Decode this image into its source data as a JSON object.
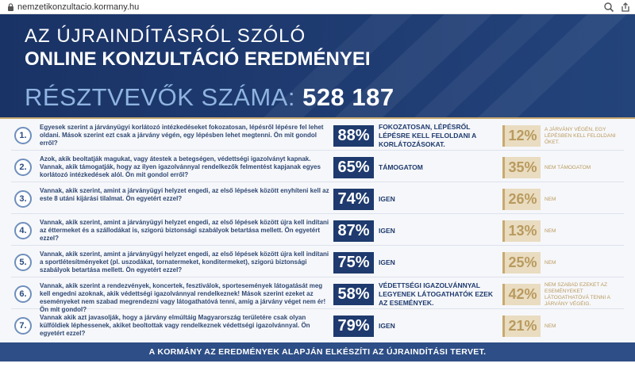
{
  "browser": {
    "url": "nemzetikonzultacio.kormany.hu",
    "icons": [
      "lock-icon",
      "zoom-icon",
      "share-icon"
    ]
  },
  "hero": {
    "line1": "AZ ÚJRAINDÍTÁSRÓL SZÓLÓ",
    "line2": "ONLINE KONZULTÁCIÓ EREDMÉNYEI",
    "count_label": "RÉSZTVEVŐK SZÁMA:",
    "count_value": "528 187"
  },
  "colors": {
    "navy": "#1e3a6e",
    "gold": "#c8a971",
    "beige": "#e9dcc0",
    "footer": "#2d4e86"
  },
  "questions": [
    {
      "num": "1.",
      "text": "Egyesek szerint a járványügyi korlátozó intézkedéseket fokozatosan, lépésről lépésre fel lehet oldani. Mások szerint ezt csak a járvány végén, egy lépésben lehet megtenni. Ön mit gondol erről?",
      "pct": "88%",
      "answer": "FOKOZATOSAN, LÉPÉSRŐL LÉPÉSRE KELL FELOLDANI A KORLÁTOZÁSOKAT.",
      "alt_pct": "12%",
      "alt_answer": "A járvány végén, egy lépésben kell feloldani őket."
    },
    {
      "num": "2.",
      "text": "Azok, akik beoltatják magukat, vagy átestek a betegségen, védettségi igazolványt kapnak. Vannak, akik támogatják, hogy az ilyen igazolvánnyal rendelkezők felmentést kapjanak egyes korlátozó intézkedések alól. Ön mit gondol erről?",
      "pct": "65%",
      "answer": "TÁMOGATOM",
      "alt_pct": "35%",
      "alt_answer": "Nem támogatom"
    },
    {
      "num": "3.",
      "text": "Vannak, akik szerint, amint a járványügyi helyzet engedi, az első lépések között enyhíteni kell az este 8 utáni kijárási tilalmat. Ön egyetért ezzel?",
      "pct": "74%",
      "answer": "IGEN",
      "alt_pct": "26%",
      "alt_answer": "Nem"
    },
    {
      "num": "4.",
      "text": "Vannak, akik szerint, amint a járványügyi helyzet engedi, az első lépések között újra kell indítani az éttermeket és a szállodákat is, szigorú biztonsági szabályok betartása mellett. Ön egyetért ezzel?",
      "pct": "87%",
      "answer": "IGEN",
      "alt_pct": "13%",
      "alt_answer": "Nem"
    },
    {
      "num": "5.",
      "text": "Vannak, akik szerint, amint a járványügyi helyzet engedi, az első lépések között újra kell indítani a sportlétesítményeket (pl. uszodákat, tornatermeket, konditermeket), szigorú biztonsági szabályok betartása mellett. Ön egyetért ezzel?",
      "pct": "75%",
      "answer": "IGEN",
      "alt_pct": "25%",
      "alt_answer": "Nem"
    },
    {
      "num": "6.",
      "text": "Vannak, akik szerint a rendezvények, koncertek, fesztiválok, sportesemények látogatását meg kell engedni azoknak, akik védettségi igazolvánnyal rendelkeznek! Mások szerint ezeket az eseményeket nem szabad megrendezni vagy látogathatóvá tenni, amíg a járvány véget nem ér! Ön mit gondol?",
      "pct": "58%",
      "answer": "VÉDETTSÉGI IGAZOLVÁNNYAL LEGYENEK LÁTOGATHATÓK EZEK AZ ESEMÉNYEK.",
      "alt_pct": "42%",
      "alt_answer": "Nem szabad ezeket az eseményeket látogathatóvá tenni a járvány végéig."
    },
    {
      "num": "7.",
      "text": "Vannak akik azt javasolják, hogy a járvány elmúltáig Magyarország területére csak olyan külföldiek léphessenek, akiket beoltottak vagy rendelkeznek védettségi igazolvánnyal. Ön egyetért ezzel?",
      "pct": "79%",
      "answer": "IGEN",
      "alt_pct": "21%",
      "alt_answer": "Nem"
    }
  ],
  "footer": {
    "text": "A KORMÁNY AZ EREDMÉNYEK ALAPJÁN ELKÉSZÍTI AZ ÚJRAINDÍTÁSI TERVET."
  }
}
